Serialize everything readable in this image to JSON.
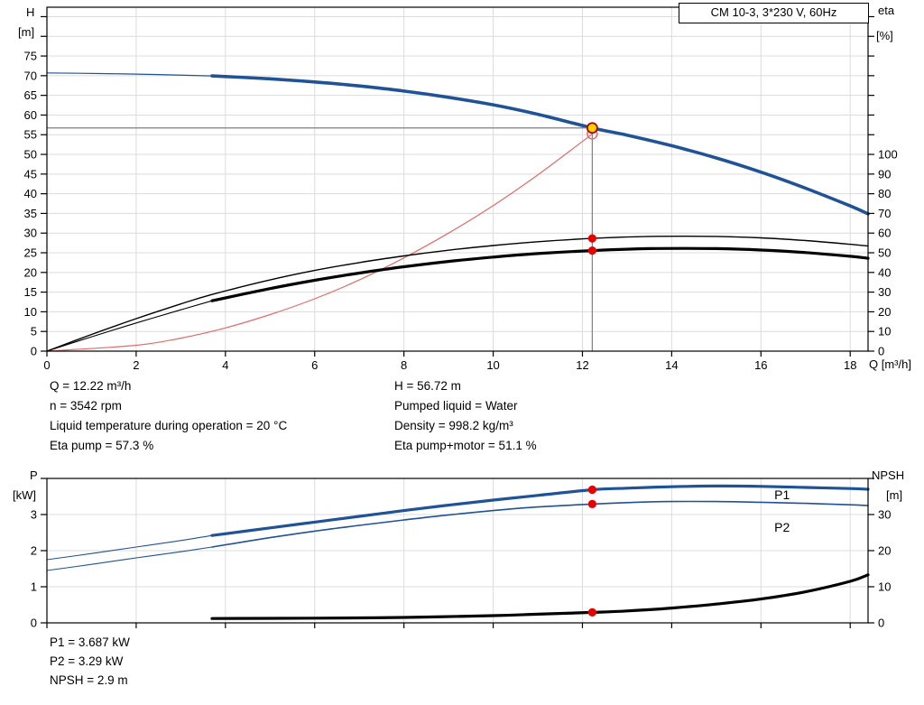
{
  "title_box": {
    "label": "CM 10-3, 3*230 V, 60Hz"
  },
  "colors": {
    "pump_blue": "#1f5296",
    "system_red": "#e46a6a",
    "marker_red": "#e60000",
    "duty_yellow": "#ffd400",
    "grid": "#dcdcdc",
    "crosshair": "#7f7f7f"
  },
  "chart_data": [
    {
      "id": "hq",
      "type": "line",
      "title": "CM 10-3, 3*230 V, 60Hz",
      "x_axis": {
        "label": "Q [m³/h]",
        "min": 0,
        "max": 18.4,
        "ticks": [
          0,
          2,
          4,
          6,
          8,
          10,
          12,
          14,
          16,
          18
        ]
      },
      "left_axis": {
        "name": "H",
        "unit": "[m]",
        "min": 0,
        "max": 87.4,
        "tick_step": 5,
        "label_max": 75
      },
      "right_axis": {
        "name": "eta",
        "unit": "[%]",
        "min": 0,
        "max": 174.8,
        "tick_step": 10,
        "label_max": 100
      },
      "series": [
        {
          "name": "pump-curve-low-flow",
          "axis": "left",
          "color": "#1f5296",
          "width": 1.2,
          "points": [
            [
              0,
              70.7
            ],
            [
              1.2,
              70.55
            ],
            [
              2.4,
              70.3
            ],
            [
              3.7,
              69.95
            ]
          ]
        },
        {
          "name": "pump-curve",
          "axis": "left",
          "color": "#1f5296",
          "width": 3.6,
          "points": [
            [
              3.7,
              69.95
            ],
            [
              5,
              69.2
            ],
            [
              6,
              68.4
            ],
            [
              7,
              67.4
            ],
            [
              8,
              66.1
            ],
            [
              9,
              64.5
            ],
            [
              10,
              62.6
            ],
            [
              11,
              60.2
            ],
            [
              12.22,
              56.72
            ],
            [
              13,
              54.9
            ],
            [
              14,
              52.2
            ],
            [
              15,
              49.1
            ],
            [
              16,
              45.5
            ],
            [
              17,
              41.4
            ],
            [
              18,
              36.9
            ],
            [
              18.4,
              34.9
            ]
          ]
        },
        {
          "name": "system-curve",
          "axis": "left",
          "color": "#e46a6a",
          "width": 1.2,
          "points": [
            [
              0,
              0
            ],
            [
              2,
              1.5
            ],
            [
              3,
              3.3
            ],
            [
              4,
              5.9
            ],
            [
              5,
              9.3
            ],
            [
              6,
              13.3
            ],
            [
              7,
              18.1
            ],
            [
              8,
              23.7
            ],
            [
              9,
              30
            ],
            [
              10,
              37
            ],
            [
              11,
              44.8
            ],
            [
              12,
              53.3
            ],
            [
              12.22,
              55.2
            ]
          ]
        },
        {
          "name": "eta-pump-curve",
          "axis": "right",
          "color": "#000000",
          "width": 1.4,
          "points": [
            [
              0,
              0
            ],
            [
              1,
              8.5
            ],
            [
              2,
              16.5
            ],
            [
              3,
              24
            ],
            [
              3.7,
              28.8
            ],
            [
              5,
              36.2
            ],
            [
              6,
              41
            ],
            [
              7,
              45
            ],
            [
              8,
              48.4
            ],
            [
              9,
              51.3
            ],
            [
              10,
              53.7
            ],
            [
              11,
              55.6
            ],
            [
              12.22,
              57.3
            ],
            [
              13.5,
              58.3
            ],
            [
              15,
              58.3
            ],
            [
              16,
              57.6
            ],
            [
              17,
              56.2
            ],
            [
              18,
              54.3
            ],
            [
              18.4,
              53.4
            ]
          ]
        },
        {
          "name": "eta-pump-motor-low-flow",
          "axis": "right",
          "color": "#000000",
          "width": 1.1,
          "points": [
            [
              0,
              0
            ],
            [
              1,
              7.3
            ],
            [
              2,
              14.3
            ],
            [
              3,
              21
            ],
            [
              3.7,
              25.6
            ]
          ]
        },
        {
          "name": "eta-pump-motor-curve",
          "axis": "right",
          "color": "#000000",
          "width": 3.2,
          "points": [
            [
              3.7,
              25.6
            ],
            [
              5,
              31.8
            ],
            [
              6,
              36
            ],
            [
              7,
              39.7
            ],
            [
              8,
              42.9
            ],
            [
              9,
              45.6
            ],
            [
              10,
              47.8
            ],
            [
              11,
              49.6
            ],
            [
              12.22,
              51.1
            ],
            [
              13.5,
              52.1
            ],
            [
              15,
              52.1
            ],
            [
              16,
              51.4
            ],
            [
              17,
              50.1
            ],
            [
              18,
              48.2
            ],
            [
              18.4,
              47.2
            ]
          ]
        }
      ],
      "duty_point": {
        "q": 12.22,
        "h": 56.72
      },
      "markers": [
        {
          "name": "requested-duty-marker",
          "axis": "left",
          "x": 12.22,
          "y": 55.2,
          "r": 5.5,
          "stroke": "#e46a6a",
          "stroke_width": 1.5
        },
        {
          "name": "duty-point-marker",
          "axis": "left",
          "x": 12.22,
          "y": 56.72,
          "r": 5.5,
          "fill": "#ffd400",
          "stroke": "#b40000",
          "stroke_width": 1.8
        },
        {
          "name": "eta-pump-duty-marker",
          "axis": "right",
          "x": 12.22,
          "y": 57.3,
          "r": 4.6,
          "fill": "#e60000"
        },
        {
          "name": "eta-pump-motor-duty-marker",
          "axis": "right",
          "x": 12.22,
          "y": 51.1,
          "r": 4.6,
          "fill": "#e60000"
        }
      ]
    },
    {
      "id": "power",
      "type": "line",
      "x_axis": {
        "label": "",
        "min": 0,
        "max": 18.4,
        "ticks": [
          0,
          2,
          4,
          6,
          8,
          10,
          12,
          14,
          16,
          18
        ]
      },
      "left_axis": {
        "name": "P",
        "unit": "[kW]",
        "min": 0,
        "max": 4,
        "tick_step": 1,
        "label_max": 3
      },
      "right_axis": {
        "name": "NPSH",
        "unit": "[m]",
        "min": 0,
        "max": 40,
        "tick_step": 10,
        "label_max": 30
      },
      "series": [
        {
          "name": "p1-curve-low-flow",
          "axis": "left",
          "color": "#1f5296",
          "width": 1.1,
          "points": [
            [
              0,
              1.75
            ],
            [
              1,
              1.92
            ],
            [
              2,
              2.1
            ],
            [
              3,
              2.28
            ],
            [
              3.7,
              2.42
            ]
          ]
        },
        {
          "name": "p1-curve",
          "axis": "left",
          "color": "#1f5296",
          "width": 3.2,
          "points": [
            [
              3.7,
              2.42
            ],
            [
              5,
              2.63
            ],
            [
              6,
              2.79
            ],
            [
              7,
              2.95
            ],
            [
              8,
              3.11
            ],
            [
              9,
              3.26
            ],
            [
              10,
              3.4
            ],
            [
              11,
              3.53
            ],
            [
              12.22,
              3.687
            ],
            [
              13,
              3.73
            ],
            [
              14,
              3.77
            ],
            [
              15,
              3.79
            ],
            [
              16,
              3.78
            ],
            [
              17,
              3.75
            ],
            [
              18,
              3.72
            ],
            [
              18.4,
              3.7
            ]
          ]
        },
        {
          "name": "p2-curve-low-flow",
          "axis": "left",
          "color": "#1f5296",
          "width": 1.1,
          "points": [
            [
              0,
              1.45
            ],
            [
              1,
              1.62
            ],
            [
              2,
              1.8
            ],
            [
              3,
              1.97
            ],
            [
              3.7,
              2.1
            ]
          ]
        },
        {
          "name": "p2-curve",
          "axis": "left",
          "color": "#1f5296",
          "width": 1.6,
          "points": [
            [
              3.7,
              2.1
            ],
            [
              5,
              2.36
            ],
            [
              6,
              2.54
            ],
            [
              7,
              2.7
            ],
            [
              8,
              2.85
            ],
            [
              9,
              2.99
            ],
            [
              10,
              3.11
            ],
            [
              11,
              3.21
            ],
            [
              12.22,
              3.29
            ],
            [
              13,
              3.33
            ],
            [
              14,
              3.36
            ],
            [
              15,
              3.36
            ],
            [
              16,
              3.34
            ],
            [
              17,
              3.31
            ],
            [
              18,
              3.27
            ],
            [
              18.4,
              3.25
            ]
          ]
        },
        {
          "name": "npsh-curve",
          "axis": "right",
          "color": "#000000",
          "width": 3.2,
          "points": [
            [
              3.7,
              1.2
            ],
            [
              6,
              1.3
            ],
            [
              8,
              1.5
            ],
            [
              10,
              2.0
            ],
            [
              11,
              2.4
            ],
            [
              12.22,
              2.9
            ],
            [
              13,
              3.3
            ],
            [
              14,
              4.1
            ],
            [
              15,
              5.2
            ],
            [
              16,
              6.6
            ],
            [
              17,
              8.6
            ],
            [
              18,
              11.5
            ],
            [
              18.4,
              13.3
            ]
          ]
        }
      ],
      "markers": [
        {
          "name": "p1-duty-marker",
          "axis": "left",
          "x": 12.22,
          "y": 3.687,
          "r": 4.6,
          "fill": "#e60000"
        },
        {
          "name": "p2-duty-marker",
          "axis": "left",
          "x": 12.22,
          "y": 3.29,
          "r": 4.6,
          "fill": "#e60000"
        },
        {
          "name": "npsh-duty-marker",
          "axis": "right",
          "x": 12.22,
          "y": 2.9,
          "r": 4.6,
          "fill": "#e60000"
        }
      ],
      "curve_labels": [
        {
          "text": "P1",
          "axis": "left",
          "x": 16.3,
          "y": 3.42,
          "color": "#1f5296"
        },
        {
          "text": "P2",
          "axis": "left",
          "x": 16.3,
          "y": 2.52,
          "color": "#1f5296"
        }
      ]
    }
  ],
  "duty_readout": {
    "left": [
      "Q = 12.22 m³/h",
      "n = 3542 rpm",
      "Liquid temperature during operation = 20 °C",
      "Eta pump = 57.3 %"
    ],
    "right": [
      "H = 56.72 m",
      "Pumped liquid = Water",
      "Density = 998.2 kg/m³",
      "Eta pump+motor = 51.1 %"
    ]
  },
  "power_readout": [
    "P1 = 3.687 kW",
    "P2 = 3.29 kW",
    "NPSH = 2.9 m"
  ]
}
